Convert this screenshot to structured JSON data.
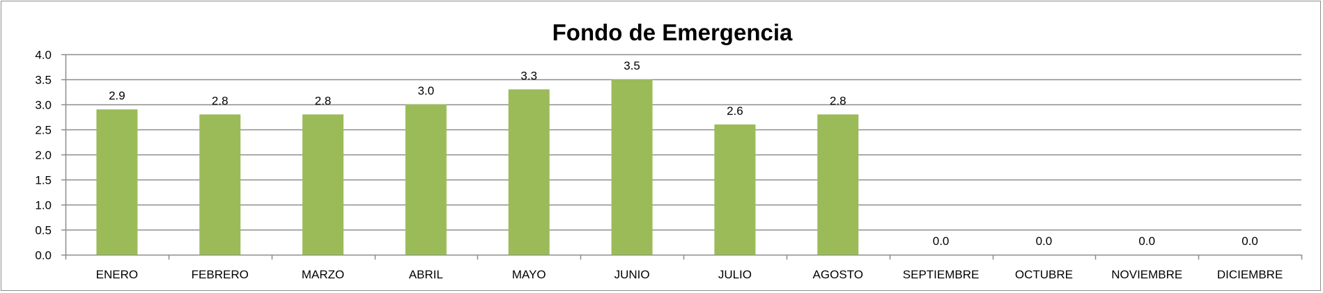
{
  "chart_data": {
    "type": "bar",
    "title": "Fondo de Emergencia",
    "xlabel": "",
    "ylabel": "",
    "categories": [
      "ENERO",
      "FEBRERO",
      "MARZO",
      "ABRIL",
      "MAYO",
      "JUNIO",
      "JULIO",
      "AGOSTO",
      "SEPTIEMBRE",
      "OCTUBRE",
      "NOVIEMBRE",
      "DICIEMBRE"
    ],
    "values": [
      2.9,
      2.8,
      2.8,
      3.0,
      3.3,
      3.5,
      2.6,
      2.8,
      0.0,
      0.0,
      0.0,
      0.0
    ],
    "data_labels": [
      "2.9",
      "2.8",
      "2.8",
      "3.0",
      "3.3",
      "3.5",
      "2.6",
      "2.8",
      "0.0",
      "0.0",
      "0.0",
      "0.0"
    ],
    "ylim": [
      0,
      4.0
    ],
    "yticks": [
      "0.0",
      "0.5",
      "1.0",
      "1.5",
      "2.0",
      "2.5",
      "3.0",
      "3.5",
      "4.0"
    ],
    "grid": true,
    "legend": "none",
    "bar_color": "#9bbb59",
    "grid_color": "#8c8c8c"
  }
}
